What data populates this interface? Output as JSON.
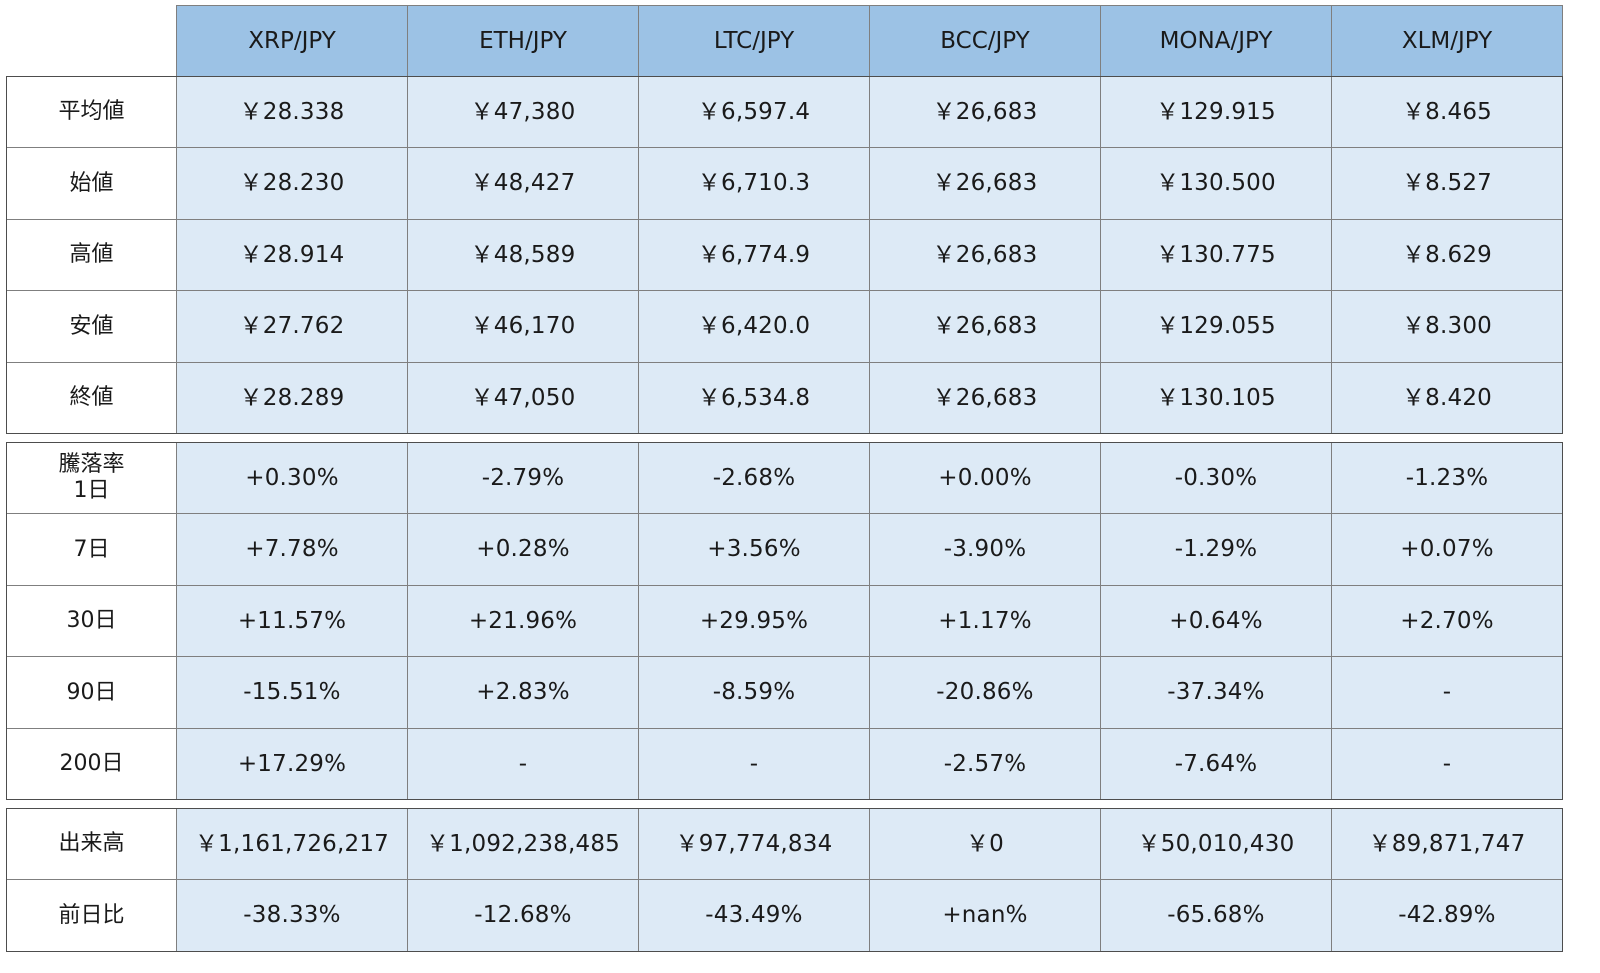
{
  "columns": [
    "XRP/JPY",
    "ETH/JPY",
    "LTC/JPY",
    "BCC/JPY",
    "MONA/JPY",
    "XLM/JPY"
  ],
  "prices": {
    "rows": [
      {
        "label": "平均値",
        "values": [
          "￥28.338",
          "￥47,380",
          "￥6,597.4",
          "￥26,683",
          "￥129.915",
          "￥8.465"
        ]
      },
      {
        "label": "始値",
        "values": [
          "￥28.230",
          "￥48,427",
          "￥6,710.3",
          "￥26,683",
          "￥130.500",
          "￥8.527"
        ]
      },
      {
        "label": "高値",
        "values": [
          "￥28.914",
          "￥48,589",
          "￥6,774.9",
          "￥26,683",
          "￥130.775",
          "￥8.629"
        ]
      },
      {
        "label": "安値",
        "values": [
          "￥27.762",
          "￥46,170",
          "￥6,420.0",
          "￥26,683",
          "￥129.055",
          "￥8.300"
        ]
      },
      {
        "label": "終値",
        "values": [
          "￥28.289",
          "￥47,050",
          "￥6,534.8",
          "￥26,683",
          "￥130.105",
          "￥8.420"
        ]
      }
    ]
  },
  "change": {
    "title": "騰落率",
    "rows": [
      {
        "label": "1日",
        "values": [
          "+0.30%",
          "-2.79%",
          "-2.68%",
          "+0.00%",
          "-0.30%",
          "-1.23%"
        ]
      },
      {
        "label": "7日",
        "values": [
          "+7.78%",
          "+0.28%",
          "+3.56%",
          "-3.90%",
          "-1.29%",
          "+0.07%"
        ]
      },
      {
        "label": "30日",
        "values": [
          "+11.57%",
          "+21.96%",
          "+29.95%",
          "+1.17%",
          "+0.64%",
          "+2.70%"
        ]
      },
      {
        "label": "90日",
        "values": [
          "-15.51%",
          "+2.83%",
          "-8.59%",
          "-20.86%",
          "-37.34%",
          "-"
        ]
      },
      {
        "label": "200日",
        "values": [
          "+17.29%",
          "-",
          "-",
          "-2.57%",
          "-7.64%",
          "-"
        ]
      }
    ]
  },
  "volume": {
    "rows": [
      {
        "label": "出来高",
        "values": [
          "￥1,161,726,217",
          "￥1,092,238,485",
          "￥97,774,834",
          "￥0",
          "￥50,010,430",
          "￥89,871,747"
        ]
      },
      {
        "label": "前日比",
        "values": [
          "-38.33%",
          "-12.68%",
          "-43.49%",
          "+nan%",
          "-65.68%",
          "-42.89%"
        ]
      }
    ]
  }
}
